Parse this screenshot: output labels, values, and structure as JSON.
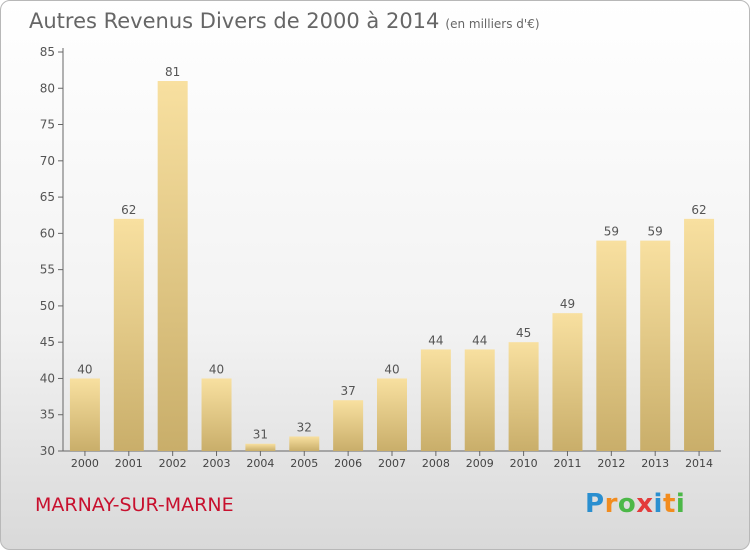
{
  "title": "Autres Revenus Divers de 2000 à 2014",
  "unit_note": "(en milliers d'€)",
  "commune": "MARNAY-SUR-MARNE",
  "logo": {
    "letters": [
      "P",
      "r",
      "o",
      "x",
      "i",
      "t",
      "i"
    ],
    "colors": [
      "#2a8fd0",
      "#f28c1e",
      "#4cb848",
      "#e33b3b",
      "#2a8fd0",
      "#f28c1e",
      "#4cb848"
    ]
  },
  "colors": {
    "bar_top": "#f8e0a0",
    "bar_bottom": "#c9ae6a",
    "axis": "#666666",
    "grid": "#dddddd",
    "commune": "#c8102e"
  },
  "chart_data": {
    "type": "bar",
    "categories": [
      "2000",
      "2001",
      "2002",
      "2003",
      "2004",
      "2005",
      "2006",
      "2007",
      "2008",
      "2009",
      "2010",
      "2011",
      "2012",
      "2013",
      "2014"
    ],
    "values": [
      40,
      62,
      81,
      40,
      31,
      32,
      37,
      40,
      44,
      44,
      45,
      49,
      59,
      59,
      62
    ],
    "ylim": [
      30,
      85
    ],
    "yticks": [
      30,
      35,
      40,
      45,
      50,
      55,
      60,
      65,
      70,
      75,
      80,
      85
    ],
    "grid": false,
    "data_labels": true
  }
}
